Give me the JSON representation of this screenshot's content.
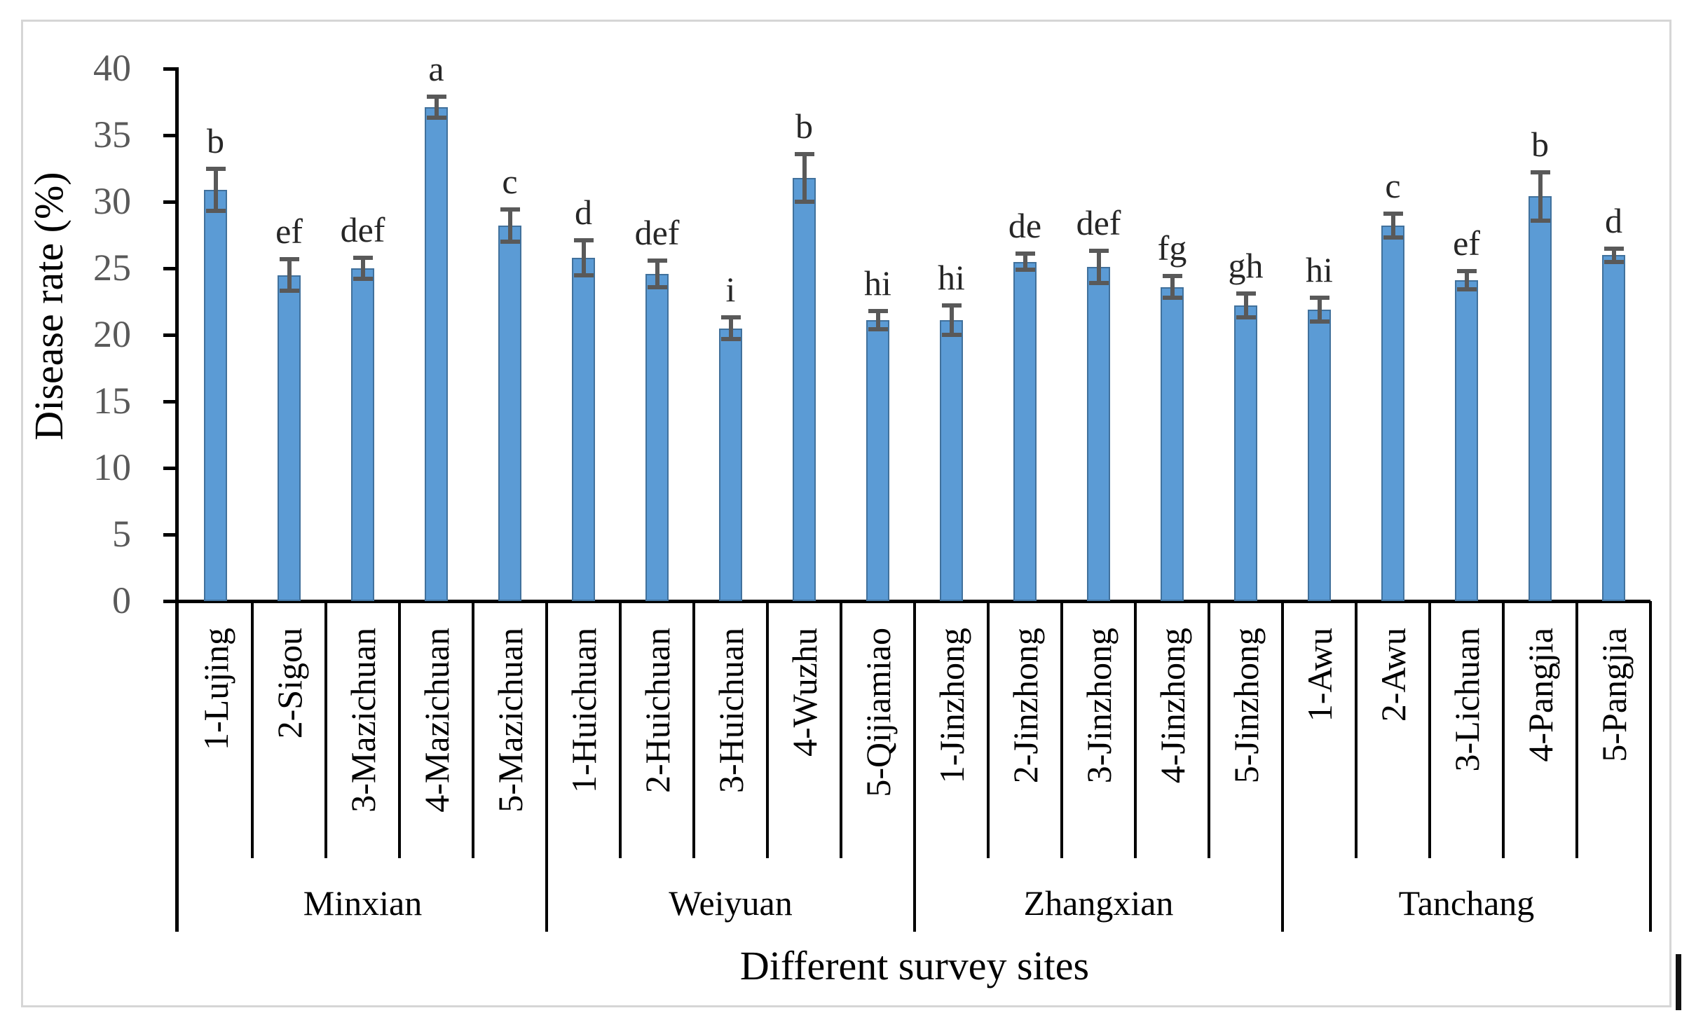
{
  "figure": {
    "background": "#ffffff",
    "frame_color": "#d6d6d6"
  },
  "chart_data": {
    "type": "bar",
    "title": "",
    "xlabel": "Different survey sites",
    "ylabel": "Disease rate (%)",
    "ylim": [
      0,
      40
    ],
    "ytick_interval": 5,
    "ytick_labels": [
      "0",
      "5",
      "10",
      "15",
      "20",
      "25",
      "30",
      "35",
      "40"
    ],
    "grid": false,
    "legend": null,
    "bar_color": "#5B9BD5",
    "bar_border_color": "#41719C",
    "error_bar_color": "#595959",
    "groups": [
      {
        "name": "Minxian",
        "sites": [
          {
            "label": "1-Lujing",
            "value": 30.9,
            "error": 1.6,
            "sig_letter": "b"
          },
          {
            "label": "2-Sigou",
            "value": 24.5,
            "error": 1.2,
            "sig_letter": "ef"
          },
          {
            "label": "3-Mazichuan",
            "value": 25.0,
            "error": 0.8,
            "sig_letter": "def"
          },
          {
            "label": "4-Mazichuan",
            "value": 37.1,
            "error": 0.8,
            "sig_letter": "a"
          },
          {
            "label": "5-Mazichuan",
            "value": 28.2,
            "error": 1.2,
            "sig_letter": "c"
          }
        ]
      },
      {
        "name": "Weiyuan",
        "sites": [
          {
            "label": "1-Huichuan",
            "value": 25.8,
            "error": 1.3,
            "sig_letter": "d"
          },
          {
            "label": "2-Huichuan",
            "value": 24.6,
            "error": 1.0,
            "sig_letter": "def"
          },
          {
            "label": "3-Huichuan",
            "value": 20.5,
            "error": 0.8,
            "sig_letter": "i"
          },
          {
            "label": "4-Wuzhu",
            "value": 31.8,
            "error": 1.8,
            "sig_letter": "b"
          },
          {
            "label": "5-Qijiamiao",
            "value": 21.1,
            "error": 0.7,
            "sig_letter": "hi"
          }
        ]
      },
      {
        "name": "Zhangxian",
        "sites": [
          {
            "label": "1-Jinzhong",
            "value": 21.1,
            "error": 1.1,
            "sig_letter": "hi"
          },
          {
            "label": "2-Jinzhong",
            "value": 25.5,
            "error": 0.6,
            "sig_letter": "de"
          },
          {
            "label": "3-Jinzhong",
            "value": 25.1,
            "error": 1.2,
            "sig_letter": "def"
          },
          {
            "label": "4-Jinzhong",
            "value": 23.6,
            "error": 0.8,
            "sig_letter": "fg"
          },
          {
            "label": "5-Jinzhong",
            "value": 22.2,
            "error": 0.9,
            "sig_letter": "gh"
          }
        ]
      },
      {
        "name": "Tanchang",
        "sites": [
          {
            "label": "1-Awu",
            "value": 21.9,
            "error": 0.9,
            "sig_letter": "hi"
          },
          {
            "label": "2-Awu",
            "value": 28.2,
            "error": 0.9,
            "sig_letter": "c"
          },
          {
            "label": "3-Lichuan",
            "value": 24.1,
            "error": 0.7,
            "sig_letter": "ef"
          },
          {
            "label": "4-Pangjia",
            "value": 30.4,
            "error": 1.8,
            "sig_letter": "b"
          },
          {
            "label": "5-Pangjia",
            "value": 26.0,
            "error": 0.5,
            "sig_letter": "d"
          }
        ]
      }
    ]
  }
}
